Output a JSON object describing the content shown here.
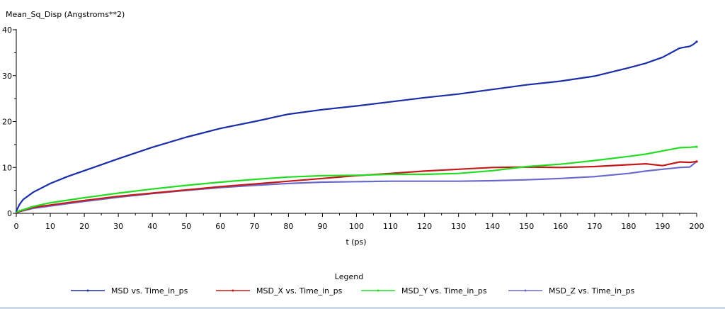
{
  "chart_data": {
    "type": "line",
    "ylabel": "Mean_Sq_Disp (Angstroms**2)",
    "xlabel": "t (ps)",
    "xlim": [
      0,
      200
    ],
    "ylim": [
      0,
      40
    ],
    "x_ticks": [
      0,
      10,
      20,
      30,
      40,
      50,
      60,
      70,
      80,
      90,
      100,
      110,
      120,
      130,
      140,
      150,
      160,
      170,
      180,
      190,
      200
    ],
    "y_ticks": [
      0,
      10,
      20,
      30,
      40
    ],
    "grid": false,
    "legend_title": "Legend",
    "legend_position": "bottom",
    "series": [
      {
        "name": "MSD vs. Time_in_ps",
        "color": "#1a2ea8",
        "x": [
          0,
          1,
          2,
          5,
          10,
          15,
          20,
          30,
          40,
          50,
          60,
          70,
          80,
          90,
          100,
          110,
          120,
          130,
          140,
          150,
          160,
          170,
          180,
          185,
          190,
          195,
          198,
          199,
          200
        ],
        "y": [
          0.5,
          2.0,
          3.0,
          4.6,
          6.5,
          8.0,
          9.3,
          11.9,
          14.4,
          16.6,
          18.5,
          20.0,
          21.6,
          22.6,
          23.4,
          24.3,
          25.2,
          26.0,
          27.0,
          28.0,
          28.8,
          29.9,
          31.7,
          32.7,
          34.0,
          36.0,
          36.4,
          36.8,
          37.4
        ]
      },
      {
        "name": "MSD_X vs. Time_in_ps",
        "color": "#c41a1a",
        "x": [
          0,
          5,
          10,
          20,
          30,
          40,
          50,
          60,
          70,
          80,
          90,
          100,
          110,
          120,
          130,
          140,
          150,
          160,
          170,
          180,
          185,
          190,
          195,
          198,
          200
        ],
        "y": [
          0.2,
          1.3,
          1.8,
          2.8,
          3.7,
          4.4,
          5.1,
          5.8,
          6.4,
          7.0,
          7.6,
          8.2,
          8.7,
          9.2,
          9.6,
          10.0,
          10.1,
          10.0,
          10.2,
          10.6,
          10.8,
          10.4,
          11.2,
          11.1,
          11.3
        ]
      },
      {
        "name": "MSD_Y vs. Time_in_ps",
        "color": "#22dd22",
        "x": [
          0,
          5,
          10,
          20,
          30,
          40,
          50,
          60,
          70,
          80,
          90,
          100,
          110,
          120,
          130,
          140,
          150,
          160,
          170,
          180,
          185,
          190,
          195,
          198,
          200
        ],
        "y": [
          0.3,
          1.5,
          2.3,
          3.4,
          4.4,
          5.3,
          6.1,
          6.8,
          7.4,
          7.9,
          8.2,
          8.3,
          8.5,
          8.5,
          8.7,
          9.3,
          10.2,
          10.7,
          11.5,
          12.4,
          12.9,
          13.6,
          14.3,
          14.4,
          14.5
        ]
      },
      {
        "name": "MSD_Z vs. Time_in_ps",
        "color": "#6a6acc",
        "x": [
          0,
          5,
          10,
          20,
          30,
          40,
          50,
          60,
          70,
          80,
          90,
          100,
          110,
          120,
          130,
          140,
          150,
          160,
          170,
          180,
          185,
          190,
          195,
          198,
          200
        ],
        "y": [
          0.2,
          1.1,
          1.6,
          2.6,
          3.5,
          4.3,
          5.0,
          5.6,
          6.1,
          6.5,
          6.8,
          6.9,
          7.0,
          7.0,
          7.0,
          7.1,
          7.3,
          7.6,
          8.0,
          8.7,
          9.2,
          9.6,
          10.0,
          10.1,
          11.3
        ]
      }
    ]
  }
}
